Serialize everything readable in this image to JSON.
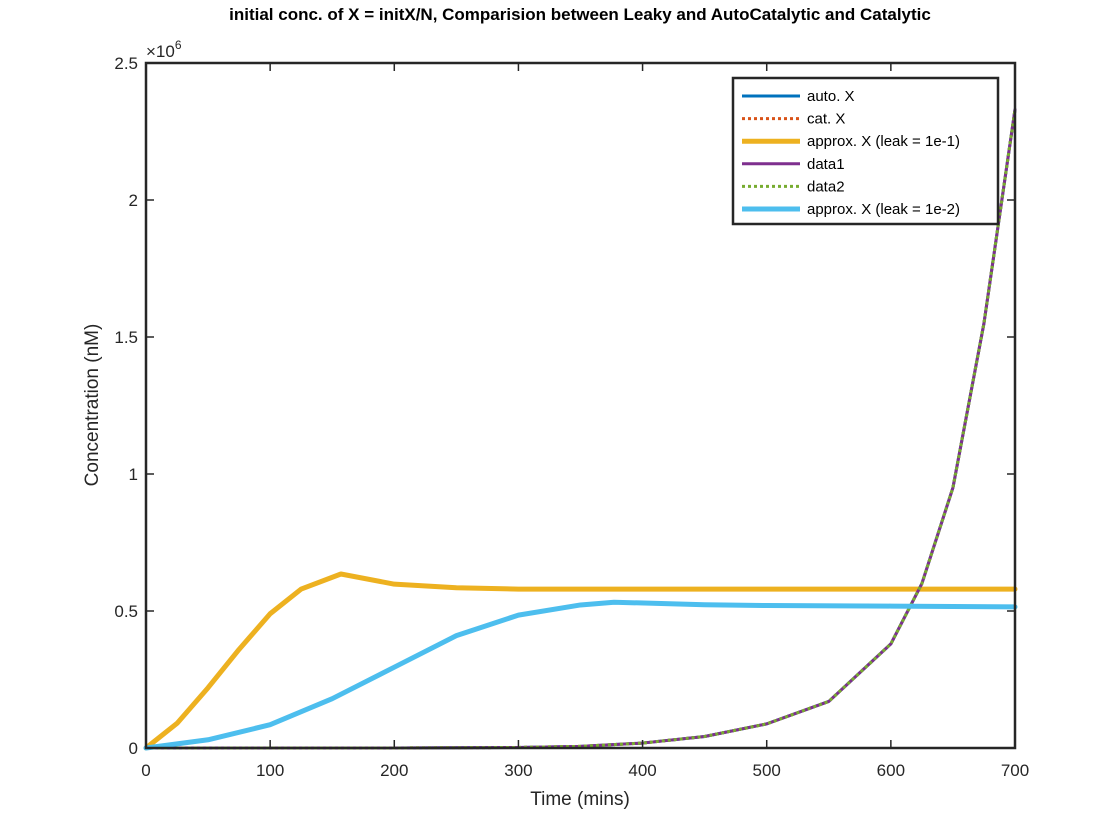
{
  "chart_data": {
    "type": "line",
    "title": "initial conc. of X = initX/N, Comparision between Leaky and AutoCatalytic and Catalytic",
    "xlabel": "Time (mins)",
    "ylabel": "Concentration (nM)",
    "xlim": [
      0,
      700
    ],
    "ylim": [
      0,
      2500000
    ],
    "xticks": [
      0,
      100,
      200,
      300,
      400,
      500,
      600,
      700
    ],
    "xtick_labels": [
      "0",
      "100",
      "200",
      "300",
      "400",
      "500",
      "600",
      "700"
    ],
    "yticks": [
      0,
      500000,
      1000000,
      1500000,
      2000000,
      2500000
    ],
    "ytick_labels": [
      "0",
      "0.5",
      "1",
      "1.5",
      "2",
      "2.5"
    ],
    "y_exponent_prefix": "×10",
    "y_exponent_power": "6",
    "grid": false,
    "legend_position": "top-right",
    "series": [
      {
        "name": "auto. X",
        "color": "#0072BD",
        "style": "solid",
        "x": [
          0,
          100,
          200,
          300,
          350,
          400,
          450,
          500,
          550,
          600,
          625,
          650,
          675,
          700
        ],
        "y": [
          0,
          0,
          0,
          2000,
          6000,
          18000,
          42000,
          88000,
          170000,
          380000,
          600000,
          950000,
          1550000,
          2330000
        ]
      },
      {
        "name": "cat. X",
        "color": "#D95319",
        "style": "dotted",
        "x": [
          0,
          100,
          200,
          300,
          350,
          400,
          450,
          500,
          550,
          600,
          625,
          650,
          675,
          700
        ],
        "y": [
          0,
          0,
          0,
          2000,
          6000,
          18000,
          42000,
          88000,
          170000,
          380000,
          600000,
          950000,
          1550000,
          2330000
        ]
      },
      {
        "name": "approx. X (leak = 1e-1)",
        "color": "#EDB120",
        "style": "solid",
        "x": [
          0,
          25,
          50,
          75,
          100,
          125,
          157,
          200,
          250,
          300,
          400,
          500,
          600,
          700
        ],
        "y": [
          0,
          90000,
          220000,
          360000,
          490000,
          580000,
          635000,
          598000,
          585000,
          580000,
          580000,
          580000,
          580000,
          580000
        ]
      },
      {
        "name": "data1",
        "color": "#7E2F8E",
        "style": "solid",
        "x": [
          0,
          100,
          200,
          300,
          350,
          400,
          450,
          500,
          550,
          600,
          625,
          650,
          675,
          700
        ],
        "y": [
          0,
          0,
          0,
          2000,
          6000,
          18000,
          42000,
          88000,
          170000,
          380000,
          600000,
          950000,
          1550000,
          2330000
        ]
      },
      {
        "name": "data2",
        "color": "#77AC30",
        "style": "dotted",
        "x": [
          0,
          100,
          200,
          300,
          350,
          400,
          450,
          500,
          550,
          600,
          625,
          650,
          675,
          700
        ],
        "y": [
          0,
          0,
          0,
          2000,
          6000,
          18000,
          42000,
          88000,
          170000,
          380000,
          600000,
          950000,
          1550000,
          2330000
        ]
      },
      {
        "name": "approx. X (leak = 1e-2)",
        "color": "#4DBEEE",
        "style": "solid",
        "x": [
          0,
          50,
          100,
          150,
          200,
          250,
          300,
          350,
          377,
          450,
          500,
          600,
          700
        ],
        "y": [
          0,
          30000,
          85000,
          180000,
          295000,
          410000,
          485000,
          522000,
          532000,
          523000,
          520000,
          518000,
          515000
        ]
      }
    ]
  }
}
